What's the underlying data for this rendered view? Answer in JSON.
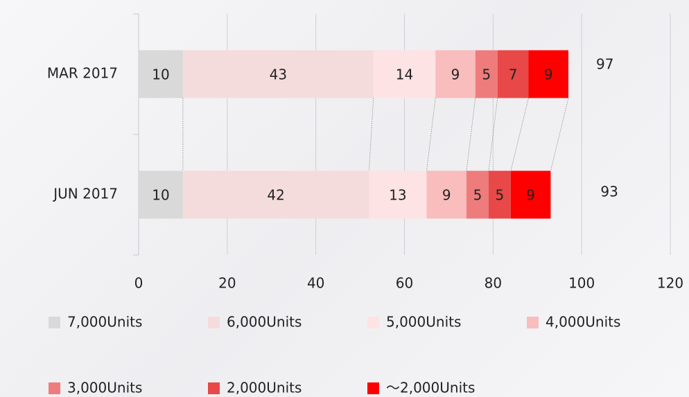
{
  "chart_data": {
    "type": "stacked_bar_horizontal",
    "categories": [
      "MAR 2017",
      "JUN 2017"
    ],
    "series": [
      {
        "name": "7,000Units",
        "color": "#d9d9d9",
        "values": [
          10,
          10
        ]
      },
      {
        "name": "6,000Units",
        "color": "#f5dcdc",
        "values": [
          43,
          42
        ]
      },
      {
        "name": "5,000Units",
        "color": "#fde3e3",
        "values": [
          14,
          13
        ]
      },
      {
        "name": "4,000Units",
        "color": "#f9bdbd",
        "values": [
          9,
          9
        ]
      },
      {
        "name": "3,000Units",
        "color": "#ee7c7c",
        "values": [
          5,
          5
        ]
      },
      {
        "name": "2,000Units",
        "color": "#e84848",
        "values": [
          7,
          5
        ]
      },
      {
        "name": "～2,000Units",
        "color": "#ff0000",
        "values": [
          9,
          9
        ]
      }
    ],
    "totals": [
      97,
      93
    ],
    "xlim": [
      0,
      120
    ],
    "xticks": [
      0,
      20,
      40,
      60,
      80,
      100,
      120
    ],
    "grid": true,
    "legend": "bottom"
  }
}
